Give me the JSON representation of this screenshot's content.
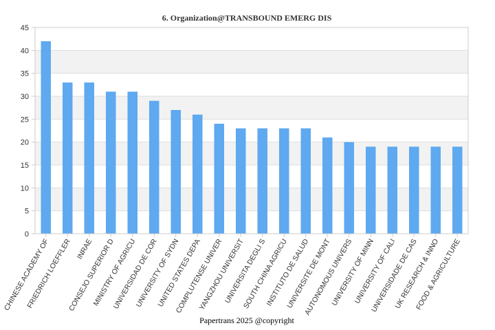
{
  "chart_data": {
    "type": "bar",
    "title": "6. Organization@TRANSBOUND EMERG DIS",
    "xlabel": "",
    "ylabel": "",
    "ylim": [
      0,
      45
    ],
    "yticks": [
      0,
      5,
      10,
      15,
      20,
      25,
      30,
      35,
      40,
      45
    ],
    "grid": true,
    "categories": [
      "CHINESE ACADEMY OF",
      "FRIEDRICH LOEFFLER",
      "INRAE",
      "CONSEJO SUPERIOR D",
      "MINISTRY OF AGRICU",
      "UNIVERSIDAD DE COR",
      "UNIVERSITY OF SYDN",
      "UNITED STATES DEPA",
      "COMPLUTENSE UNIVER",
      "YANGZHOU UNIVERSIT",
      "UNIVERSITA DEGLI S",
      "SOUTH CHINA AGRICU",
      "INSTITUTO DE SALUD",
      "UNIVERSITE DE MONT",
      "AUTONOMOUS UNIVERS",
      "UNIVERSITY OF MINN",
      "UNIVERSITY OF CALI",
      "UNIVERSIDADE DE CAS",
      "UK RESEARCH & INNO",
      "FOOD & AGRICULTURE"
    ],
    "values": [
      42,
      33,
      33,
      31,
      31,
      29,
      27,
      26,
      24,
      23,
      23,
      23,
      23,
      21,
      20,
      19,
      19,
      19,
      19,
      19
    ],
    "colors": {
      "bar": "#5ea9f0",
      "band": "#f2f2f2",
      "grid": "#dddddd",
      "axis": "#cccccc"
    }
  },
  "footer": "Papertrans 2025 @copyright"
}
